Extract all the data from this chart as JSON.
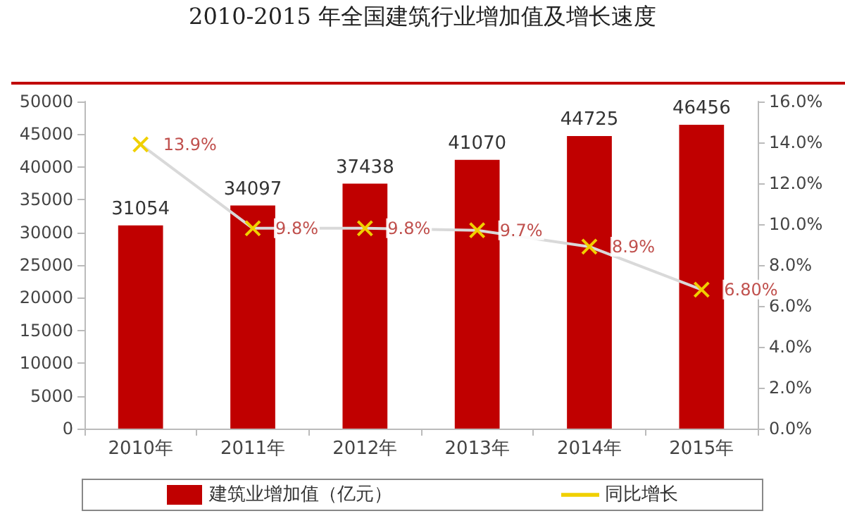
{
  "chart_data": {
    "type": "bar",
    "title": "2010-2015 年全国建筑行业增加值及增长速度",
    "categories": [
      "2010年",
      "2011年",
      "2012年",
      "2013年",
      "2014年",
      "2015年"
    ],
    "series": [
      {
        "name": "建筑业增加值（亿元）",
        "color": "#c00000",
        "values": [
          31054,
          34097,
          37438,
          41070,
          44725,
          46456
        ],
        "value_labels": [
          "31054",
          "34097",
          "37438",
          "41070",
          "44725",
          "46456"
        ]
      },
      {
        "name": "同比增长",
        "type": "line",
        "axis": "y2",
        "color": "#d9d9d9",
        "marker": "cross",
        "values": [
          13.9,
          9.8,
          9.8,
          9.7,
          8.9,
          6.8
        ],
        "value_labels": [
          "13.9%",
          "9.8%",
          "9.8%",
          "9.7%",
          "8.9%",
          "6.80%"
        ]
      }
    ],
    "ylim": [
      0,
      50000
    ],
    "yticks": [
      0,
      5000,
      10000,
      15000,
      20000,
      25000,
      30000,
      35000,
      40000,
      45000,
      50000
    ],
    "y2lim": [
      0,
      16
    ],
    "y2ticks": [
      {
        "value": 0,
        "label": "0.0%"
      },
      {
        "value": 2,
        "label": "2.0%"
      },
      {
        "value": 4,
        "label": "4.0%"
      },
      {
        "value": 6,
        "label": "6.0%"
      },
      {
        "value": 8,
        "label": "8.0%"
      },
      {
        "value": 10,
        "label": "10.0%"
      },
      {
        "value": 12,
        "label": "12.0%"
      },
      {
        "value": 14,
        "label": "14.0%"
      },
      {
        "value": 16,
        "label": "16.0%"
      }
    ],
    "grid": false,
    "legend": "bottom"
  }
}
